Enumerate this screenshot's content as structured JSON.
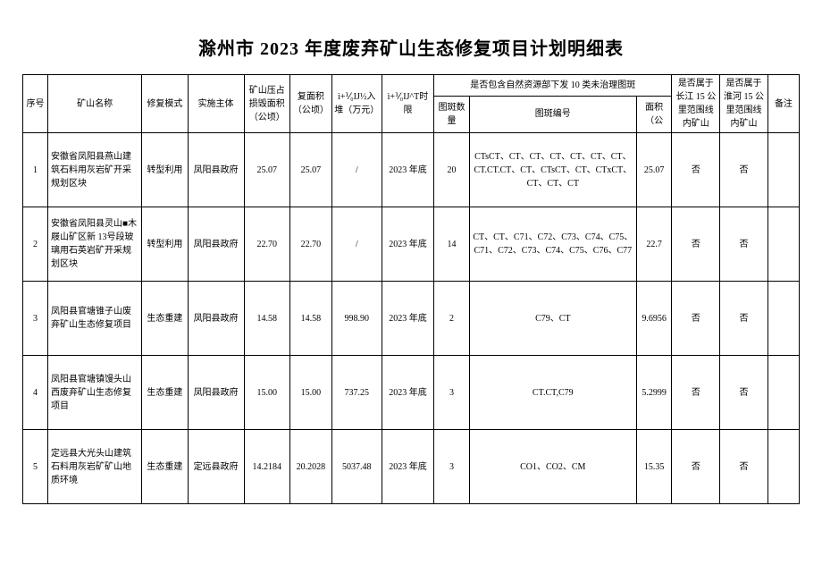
{
  "title": "滁州市 2023 年度废弃矿山生态修复项目计划明细表",
  "headers": {
    "idx": "序号",
    "name": "矿山名称",
    "mode": "修复模式",
    "impl": "实施主体",
    "damaged_area": "矿山压占损毁面积（公顷）",
    "restore_area": "复面积（公顷）",
    "invest": "ì+⅟₀IJ½入堆（万元）",
    "deadline": "ì+⅟₀IJ^T时限",
    "tuban_group": "是否包含自然资源部下发 10 类未治理图斑",
    "tb_count": "图斑数量",
    "tb_num": "图斑编号",
    "tb_area": "面积（公",
    "changjiang": "是否属于长江 15 公里范围线内矿山",
    "huaihe": "是否属于淮河 15 公里范围线内矿山",
    "remark": "备注"
  },
  "rows": [
    {
      "idx": "1",
      "name": "安徽省凤阳县燕山建筑石料用灰岩矿开采规划区块",
      "mode": "转型利用",
      "impl": "凤阳县政府",
      "damaged_area": "25.07",
      "restore_area": "25.07",
      "invest": "/",
      "deadline": "2023 年底",
      "tb_count": "20",
      "tb_num": "CTsCT、CT、CT、CT、CT、CT、CT、CT.CT.CT、CT、CTsCT、CT、CTxCT、CT、CT、CT",
      "tb_area": "25.07",
      "cj": "否",
      "hh": "否",
      "remark": ""
    },
    {
      "idx": "2",
      "name": "安徽省凤阳县灵山■木屐山矿区新 13号段玻璃用石英岩矿开采规划区块",
      "mode": "转型利用",
      "impl": "凤阳县政府",
      "damaged_area": "22.70",
      "restore_area": "22.70",
      "invest": "/",
      "deadline": "2023 年底",
      "tb_count": "14",
      "tb_num": "CT、CT、C71、C72、C73、C74、C75、C71、C72、C73、C74、C75、C76、C77",
      "tb_area": "22.7",
      "cj": "否",
      "hh": "否",
      "remark": ""
    },
    {
      "idx": "3",
      "name": "凤阳县官塘锥子山废弃矿山生态修复项目",
      "mode": "生态重建",
      "impl": "凤阳县政府",
      "damaged_area": "14.58",
      "restore_area": "14.58",
      "invest": "998.90",
      "deadline": "2023 年底",
      "tb_count": "2",
      "tb_num": "C79、CT",
      "tb_area": "9.6956",
      "cj": "否",
      "hh": "否",
      "remark": ""
    },
    {
      "idx": "4",
      "name": "凤阳县官塘镇馒头山西废弃矿山生态修复项目",
      "mode": "生态重建",
      "impl": "凤阳县政府",
      "damaged_area": "15.00",
      "restore_area": "15.00",
      "invest": "737.25",
      "deadline": "2023 年底",
      "tb_count": "3",
      "tb_num": "CT.CT,C79",
      "tb_area": "5.2999",
      "cj": "否",
      "hh": "否",
      "remark": ""
    },
    {
      "idx": "5",
      "name": "定远县大光头山建筑石料用灰岩矿矿山地质环境",
      "mode": "生态重建",
      "impl": "定远县政府",
      "damaged_area": "14.2184",
      "restore_area": "20.2028",
      "invest": "5037.48",
      "deadline": "2023 年底",
      "tb_count": "3",
      "tb_num": "CO1、CO2、CM",
      "tb_area": "15.35",
      "cj": "否",
      "hh": "否",
      "remark": ""
    }
  ]
}
